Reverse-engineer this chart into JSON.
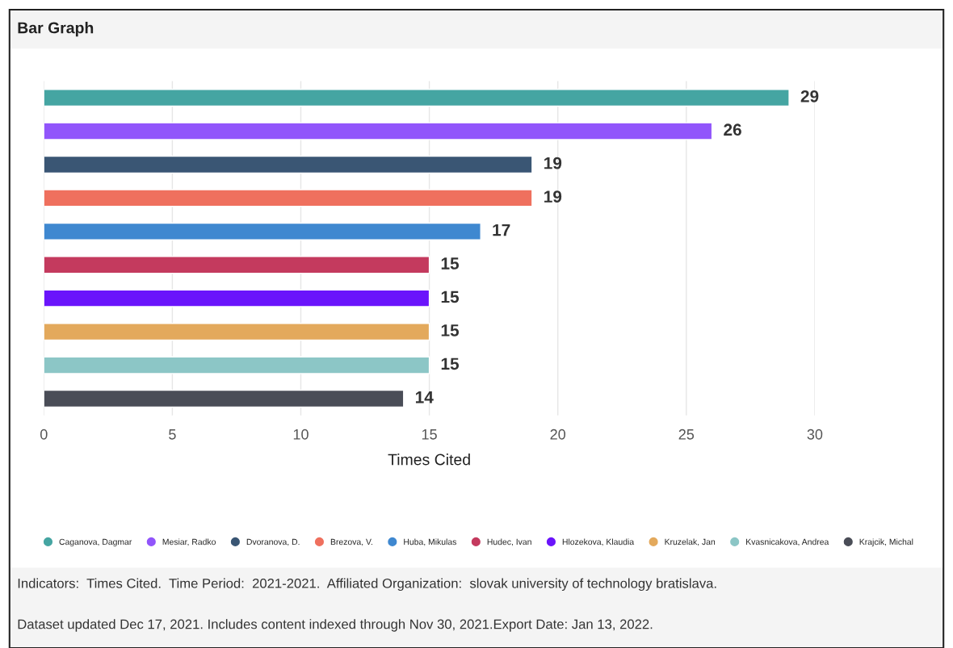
{
  "chart_data": {
    "type": "bar",
    "orientation": "horizontal",
    "title": "Bar Graph",
    "xlabel": "Times Cited",
    "categories": [
      null,
      null,
      null,
      null,
      null,
      null,
      null,
      null,
      null,
      null
    ],
    "series": [
      {
        "name": "Caganova, Dagmar",
        "color": "#45a5a2",
        "values": [
          29,
          null,
          null,
          null,
          null,
          null,
          null,
          null,
          null,
          null
        ]
      },
      {
        "name": "Mesiar, Radko",
        "color": "#9155fb",
        "values": [
          null,
          26,
          null,
          null,
          null,
          null,
          null,
          null,
          null,
          null
        ]
      },
      {
        "name": "Dvoranova, D.",
        "color": "#3a5674",
        "values": [
          null,
          null,
          19,
          null,
          null,
          null,
          null,
          null,
          null,
          null
        ]
      },
      {
        "name": "Brezova, V.",
        "color": "#ef705e",
        "values": [
          null,
          null,
          null,
          19,
          null,
          null,
          null,
          null,
          null,
          null
        ]
      },
      {
        "name": "Huba, Mikulas",
        "color": "#3f88d0",
        "values": [
          null,
          null,
          null,
          null,
          17,
          null,
          null,
          null,
          null,
          null
        ]
      },
      {
        "name": "Hudec, Ivan",
        "color": "#c43a5e",
        "values": [
          null,
          null,
          null,
          null,
          null,
          15,
          null,
          null,
          null,
          null
        ]
      },
      {
        "name": "Hlozekova, Klaudia",
        "color": "#6a14fb",
        "values": [
          null,
          null,
          null,
          null,
          null,
          null,
          15,
          null,
          null,
          null
        ]
      },
      {
        "name": "Kruzelak, Jan",
        "color": "#e3a95c",
        "values": [
          null,
          null,
          null,
          null,
          null,
          null,
          null,
          15,
          null,
          null
        ]
      },
      {
        "name": "Kvasnicakova, Andrea",
        "color": "#8cc6c6",
        "values": [
          null,
          null,
          null,
          null,
          null,
          null,
          null,
          null,
          15,
          null
        ]
      },
      {
        "name": "Krajcik, Michal",
        "color": "#4a4d57",
        "values": [
          null,
          null,
          null,
          null,
          null,
          null,
          null,
          null,
          null,
          14
        ]
      }
    ],
    "xlim": [
      0,
      30
    ],
    "xticks": [
      0,
      5,
      10,
      15,
      20,
      25,
      30
    ],
    "grid": "x",
    "legend": "bottom",
    "data_labels": true,
    "tick_labels": "x",
    "annotations": [
      "Indicators:  Times Cited.  Time Period:  2021-2021.  Affiliated Organization:  slovak university of technology bratislava.",
      "Dataset updated Dec 17, 2021. Includes content indexed through Nov 30, 2021.Export Date: Jan 13, 2022."
    ]
  }
}
